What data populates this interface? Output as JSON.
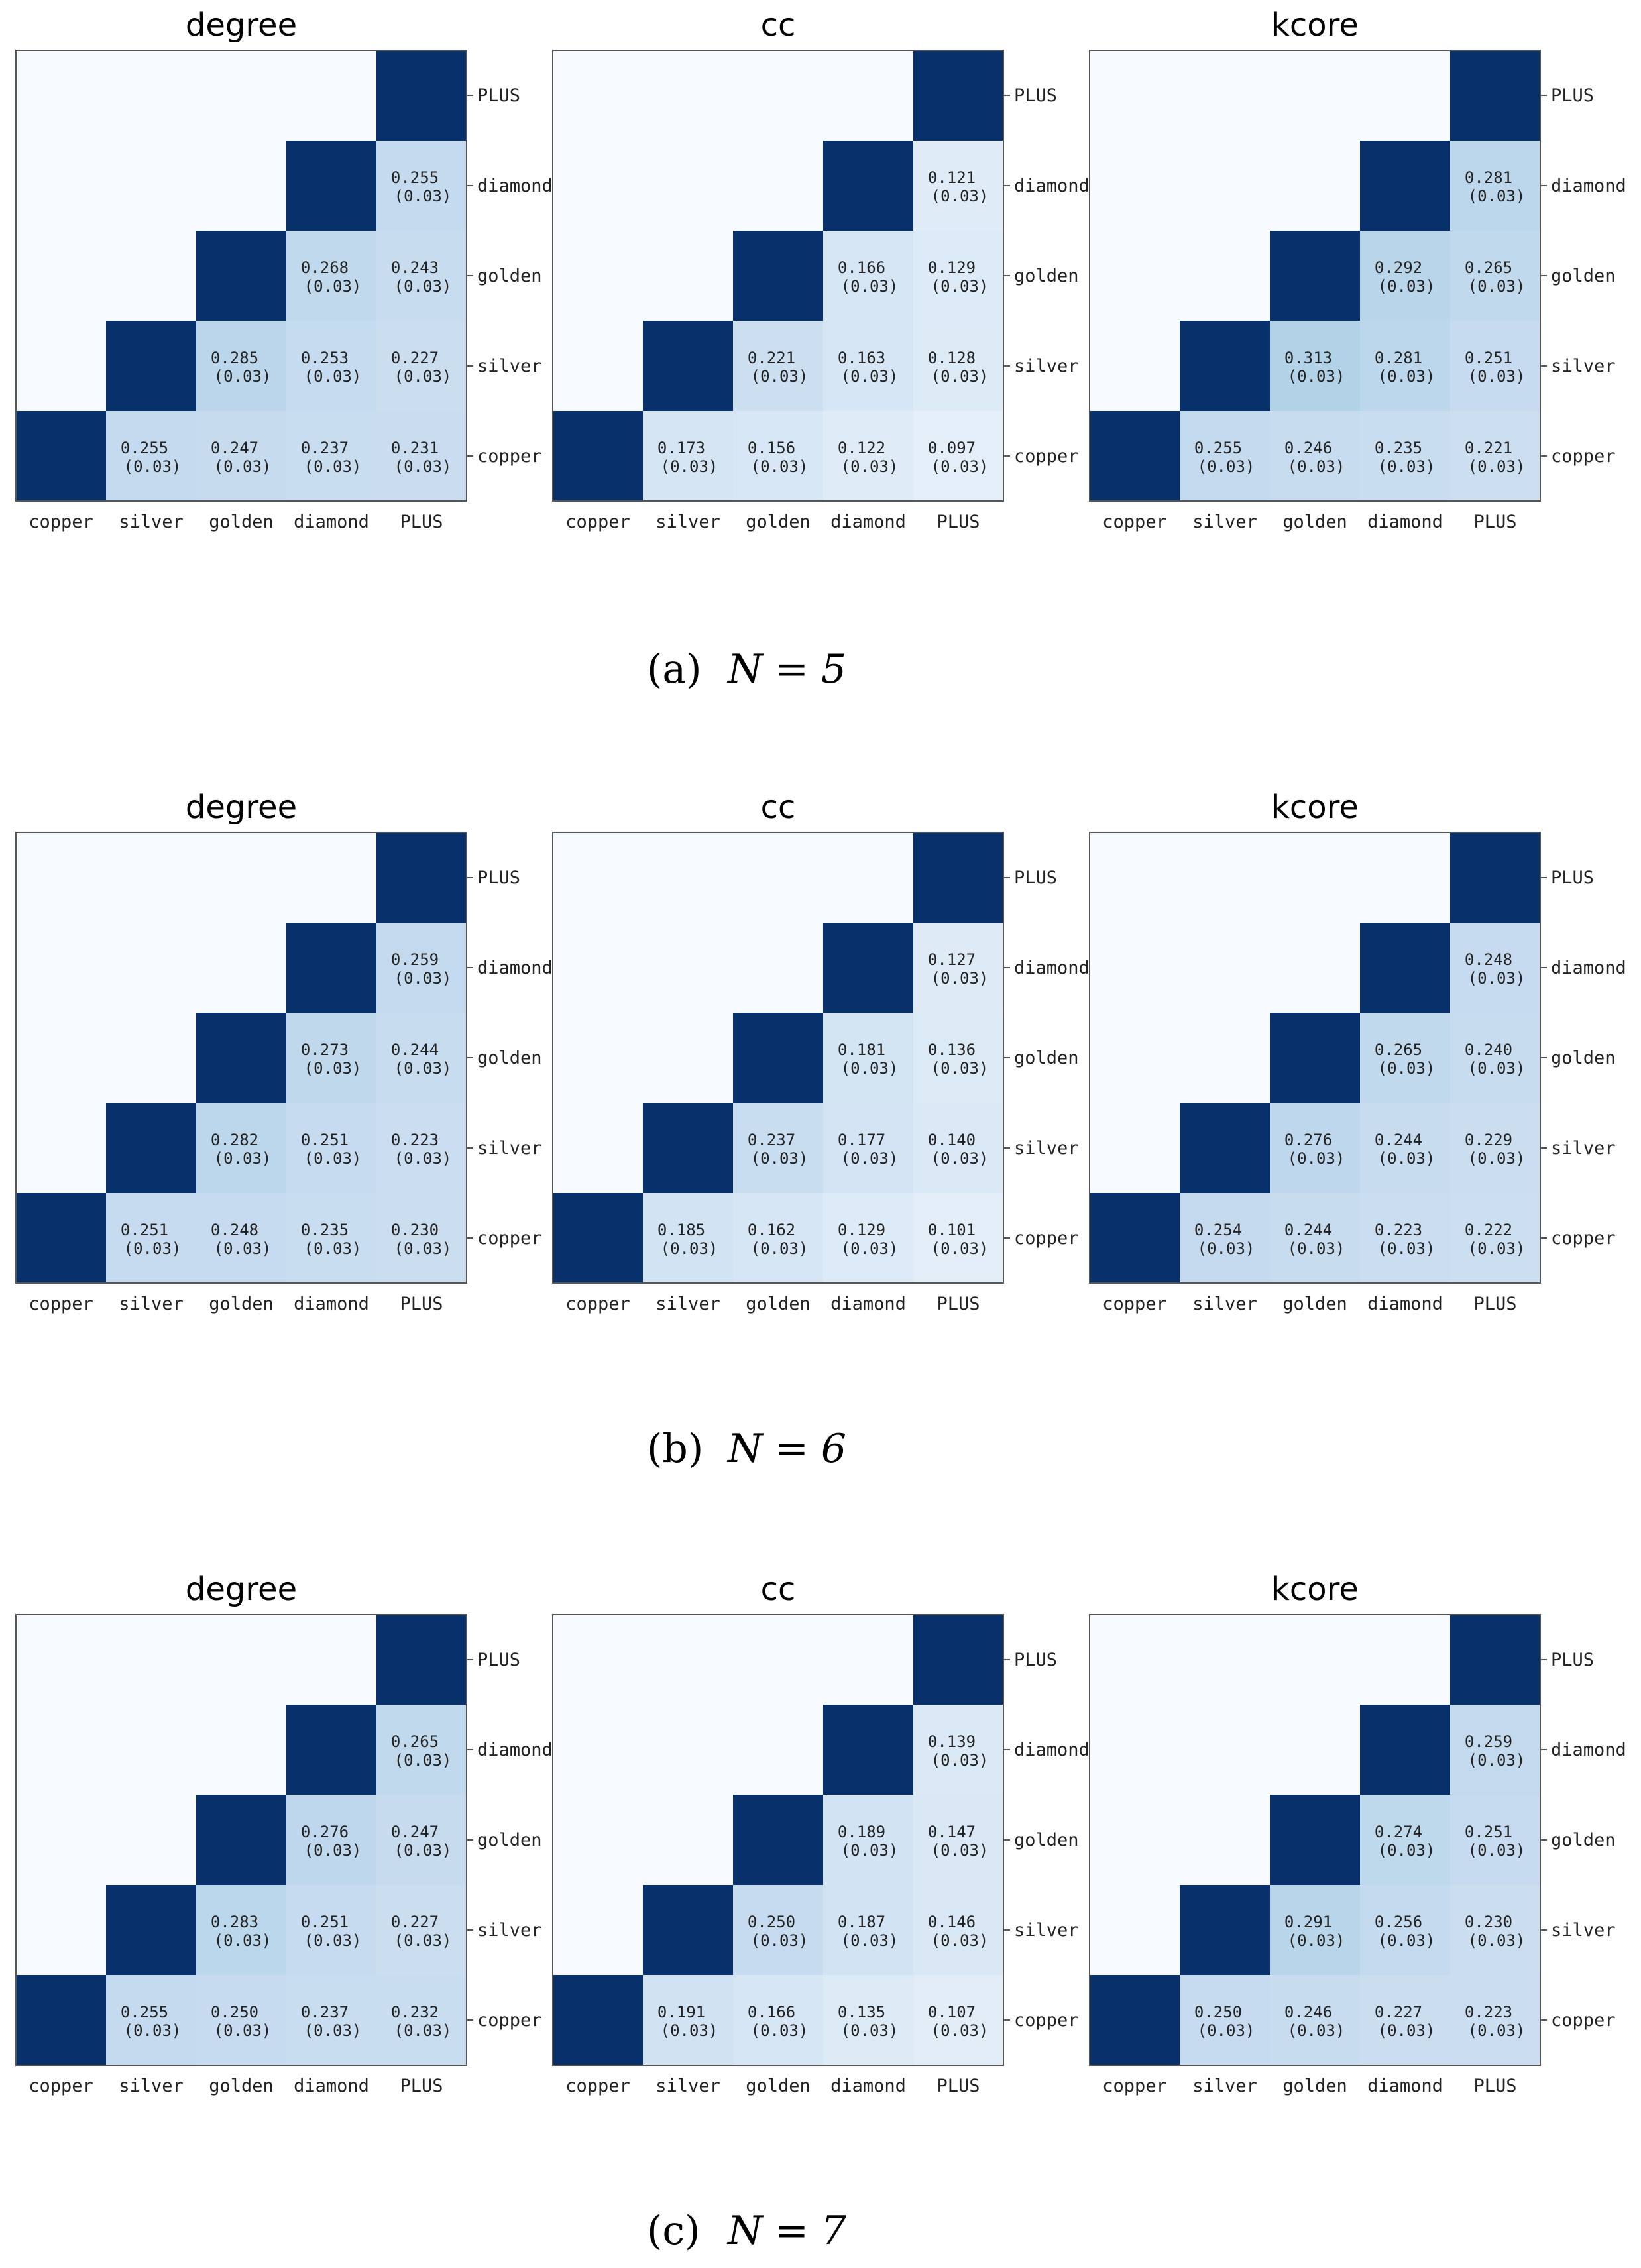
{
  "categories": [
    "copper",
    "silver",
    "golden",
    "diamond",
    "PLUS"
  ],
  "colors": {
    "diagonal": "#08306b",
    "background": "#f7fbff",
    "cmap_low": "#f7fbff",
    "cmap_high": "#08306b"
  },
  "figures": [
    {
      "caption": {
        "label": "(a)",
        "math": "N = 5"
      },
      "chart_data": [
        {
          "type": "heatmap",
          "title": "degree",
          "categories": [
            "copper",
            "silver",
            "golden",
            "diamond",
            "PLUS"
          ],
          "values": [
            [
              0.255,
              0.247,
              0.237,
              0.231
            ],
            [
              0.285,
              0.253,
              0.227
            ],
            [
              0.268,
              0.243
            ],
            [
              0.255
            ]
          ],
          "std": "(0.03)"
        },
        {
          "type": "heatmap",
          "title": "cc",
          "categories": [
            "copper",
            "silver",
            "golden",
            "diamond",
            "PLUS"
          ],
          "values": [
            [
              0.173,
              0.156,
              0.122,
              0.097
            ],
            [
              0.221,
              0.163,
              0.128
            ],
            [
              0.166,
              0.129
            ],
            [
              0.121
            ]
          ],
          "std": "(0.03)"
        },
        {
          "type": "heatmap",
          "title": "kcore",
          "categories": [
            "copper",
            "silver",
            "golden",
            "diamond",
            "PLUS"
          ],
          "values": [
            [
              0.255,
              0.246,
              0.235,
              0.221
            ],
            [
              0.313,
              0.281,
              0.251
            ],
            [
              0.292,
              0.265
            ],
            [
              0.281
            ]
          ],
          "std": "(0.03)"
        }
      ]
    },
    {
      "caption": {
        "label": "(b)",
        "math": "N = 6"
      },
      "chart_data": [
        {
          "type": "heatmap",
          "title": "degree",
          "categories": [
            "copper",
            "silver",
            "golden",
            "diamond",
            "PLUS"
          ],
          "values": [
            [
              0.251,
              0.248,
              0.235,
              0.23
            ],
            [
              0.282,
              0.251,
              0.223
            ],
            [
              0.273,
              0.244
            ],
            [
              0.259
            ]
          ],
          "std": "(0.03)"
        },
        {
          "type": "heatmap",
          "title": "cc",
          "categories": [
            "copper",
            "silver",
            "golden",
            "diamond",
            "PLUS"
          ],
          "values": [
            [
              0.185,
              0.162,
              0.129,
              0.101
            ],
            [
              0.237,
              0.177,
              0.14
            ],
            [
              0.181,
              0.136
            ],
            [
              0.127
            ]
          ],
          "std": "(0.03)"
        },
        {
          "type": "heatmap",
          "title": "kcore",
          "categories": [
            "copper",
            "silver",
            "golden",
            "diamond",
            "PLUS"
          ],
          "values": [
            [
              0.254,
              0.244,
              0.223,
              0.222
            ],
            [
              0.276,
              0.244,
              0.229
            ],
            [
              0.265,
              0.24
            ],
            [
              0.248
            ]
          ],
          "std": "(0.03)"
        }
      ]
    },
    {
      "caption": {
        "label": "(c)",
        "math": "N = 7"
      },
      "chart_data": [
        {
          "type": "heatmap",
          "title": "degree",
          "categories": [
            "copper",
            "silver",
            "golden",
            "diamond",
            "PLUS"
          ],
          "values": [
            [
              0.255,
              0.25,
              0.237,
              0.232
            ],
            [
              0.283,
              0.251,
              0.227
            ],
            [
              0.276,
              0.247
            ],
            [
              0.265
            ]
          ],
          "std": "(0.03)"
        },
        {
          "type": "heatmap",
          "title": "cc",
          "categories": [
            "copper",
            "silver",
            "golden",
            "diamond",
            "PLUS"
          ],
          "values": [
            [
              0.191,
              0.166,
              0.135,
              0.107
            ],
            [
              0.25,
              0.187,
              0.146
            ],
            [
              0.189,
              0.147
            ],
            [
              0.139
            ]
          ],
          "std": "(0.03)"
        },
        {
          "type": "heatmap",
          "title": "kcore",
          "categories": [
            "copper",
            "silver",
            "golden",
            "diamond",
            "PLUS"
          ],
          "values": [
            [
              0.25,
              0.246,
              0.227,
              0.223
            ],
            [
              0.291,
              0.256,
              0.23
            ],
            [
              0.274,
              0.251
            ],
            [
              0.259
            ]
          ],
          "std": "(0.03)"
        }
      ]
    }
  ]
}
